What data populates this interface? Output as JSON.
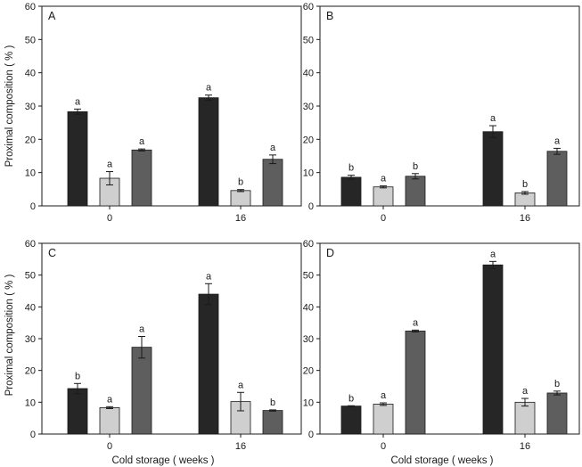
{
  "figure": {
    "ylabel": "Proximal composition ( % )",
    "xlabel": "Cold storage ( weeks )"
  },
  "chart_data": [
    {
      "type": "bar",
      "panel": "A",
      "categories": [
        "0",
        "16"
      ],
      "ylim": [
        0,
        60
      ],
      "yticks": [
        0,
        10,
        20,
        30,
        40,
        50,
        60
      ],
      "series": [
        {
          "color": "#262626",
          "values": [
            28.3,
            32.5
          ],
          "errors": [
            0.8,
            0.8
          ],
          "letters": [
            "a",
            "a"
          ]
        },
        {
          "color": "#cfcfcf",
          "values": [
            8.3,
            4.6
          ],
          "errors": [
            2.0,
            0.3
          ],
          "letters": [
            "a",
            "b"
          ]
        },
        {
          "color": "#5e5e5e",
          "values": [
            16.8,
            14.0
          ],
          "errors": [
            0.3,
            1.3
          ],
          "letters": [
            "a",
            "a"
          ]
        }
      ]
    },
    {
      "type": "bar",
      "panel": "B",
      "categories": [
        "0",
        "16"
      ],
      "ylim": [
        0,
        60
      ],
      "yticks": [
        0,
        10,
        20,
        30,
        40,
        50,
        60
      ],
      "series": [
        {
          "color": "#262626",
          "values": [
            8.6,
            22.3
          ],
          "errors": [
            0.6,
            1.8
          ],
          "letters": [
            "b",
            "a"
          ]
        },
        {
          "color": "#cfcfcf",
          "values": [
            5.7,
            3.9
          ],
          "errors": [
            0.3,
            0.4
          ],
          "letters": [
            "a",
            "b"
          ]
        },
        {
          "color": "#5e5e5e",
          "values": [
            8.9,
            16.4
          ],
          "errors": [
            0.8,
            0.9
          ],
          "letters": [
            "b",
            "a"
          ]
        }
      ]
    },
    {
      "type": "bar",
      "panel": "C",
      "categories": [
        "0",
        "16"
      ],
      "ylim": [
        0,
        60
      ],
      "yticks": [
        0,
        10,
        20,
        30,
        40,
        50,
        60
      ],
      "series": [
        {
          "color": "#262626",
          "values": [
            14.3,
            44.0
          ],
          "errors": [
            1.6,
            3.3
          ],
          "letters": [
            "b",
            "a"
          ]
        },
        {
          "color": "#cfcfcf",
          "values": [
            8.3,
            10.2
          ],
          "errors": [
            0.3,
            2.9
          ],
          "letters": [
            "a",
            "a"
          ]
        },
        {
          "color": "#5e5e5e",
          "values": [
            27.3,
            7.4
          ],
          "errors": [
            3.4,
            0.2
          ],
          "letters": [
            "a",
            "b"
          ]
        }
      ]
    },
    {
      "type": "bar",
      "panel": "D",
      "categories": [
        "0",
        "16"
      ],
      "ylim": [
        0,
        60
      ],
      "yticks": [
        0,
        10,
        20,
        30,
        40,
        50,
        60
      ],
      "series": [
        {
          "color": "#262626",
          "values": [
            8.8,
            53.2
          ],
          "errors": [
            0.1,
            1.1
          ],
          "letters": [
            "b",
            "a"
          ]
        },
        {
          "color": "#cfcfcf",
          "values": [
            9.4,
            10.0
          ],
          "errors": [
            0.4,
            1.2
          ],
          "letters": [
            "a",
            "a"
          ]
        },
        {
          "color": "#5e5e5e",
          "values": [
            32.4,
            12.9
          ],
          "errors": [
            0.3,
            0.6
          ],
          "letters": [
            "a",
            "b"
          ]
        }
      ]
    }
  ]
}
